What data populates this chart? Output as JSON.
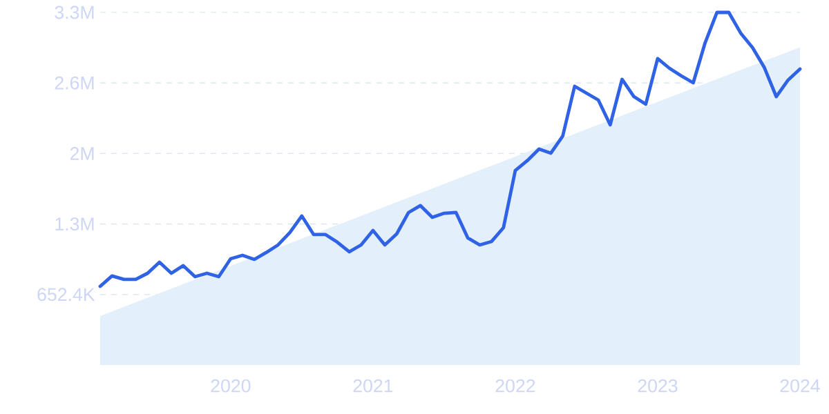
{
  "chart_data": {
    "type": "line",
    "x": [
      "2019-02",
      "2019-03",
      "2019-04",
      "2019-05",
      "2019-06",
      "2019-07",
      "2019-08",
      "2019-09",
      "2019-10",
      "2019-11",
      "2019-12",
      "2020-01",
      "2020-02",
      "2020-03",
      "2020-04",
      "2020-05",
      "2020-06",
      "2020-07",
      "2020-08",
      "2020-09",
      "2020-10",
      "2020-11",
      "2020-12",
      "2021-01",
      "2021-02",
      "2021-03",
      "2021-04",
      "2021-05",
      "2021-06",
      "2021-07",
      "2021-08",
      "2021-09",
      "2021-10",
      "2021-11",
      "2021-12",
      "2022-01",
      "2022-02",
      "2022-03",
      "2022-04",
      "2022-05",
      "2022-06",
      "2022-07",
      "2022-08",
      "2022-09",
      "2022-10",
      "2022-11",
      "2022-12",
      "2023-01",
      "2023-02",
      "2023-03",
      "2023-04",
      "2023-05",
      "2023-06",
      "2023-07",
      "2023-08",
      "2023-09",
      "2023-10",
      "2023-11",
      "2023-12",
      "2024-01"
    ],
    "series": [
      {
        "type": "area",
        "color": "#e4effc",
        "x": [
          "2019-02",
          "2024-01"
        ],
        "values": [
          453000,
          2940000
        ]
      },
      {
        "color": "#2f62e4",
        "values": [
          728000,
          824000,
          792000,
          792000,
          849000,
          951000,
          849000,
          919000,
          817000,
          849000,
          817000,
          983000,
          1015000,
          977000,
          1041000,
          1111000,
          1226000,
          1379000,
          1207000,
          1207000,
          1136000,
          1047000,
          1111000,
          1245000,
          1111000,
          1213000,
          1411000,
          1475000,
          1366000,
          1404000,
          1411000,
          1175000,
          1111000,
          1143000,
          1270000,
          1800000,
          1890000,
          1998000,
          1960000,
          2119000,
          2579000,
          2515000,
          2451000,
          2222000,
          2643000,
          2483000,
          2413000,
          2835000,
          2745000,
          2675000,
          2611000,
          2981000,
          3262000,
          3262000,
          3071000,
          2937000,
          2751000,
          2483000,
          2637000,
          2739000
        ]
      }
    ],
    "xlim": [
      "2019-02",
      "2024-01"
    ],
    "xticks": [
      "2020",
      "2021",
      "2022",
      "2023",
      "2024"
    ],
    "ylim": [
      0,
      3262000
    ],
    "yticks": [
      {
        "value": 652400,
        "label": "652.4K"
      },
      {
        "value": 1304800,
        "label": "1.3M"
      },
      {
        "value": 1957200,
        "label": "2M"
      },
      {
        "value": 2609600,
        "label": "2.6M"
      },
      {
        "value": 3262000,
        "label": "3.3M"
      }
    ],
    "grid": "y"
  }
}
